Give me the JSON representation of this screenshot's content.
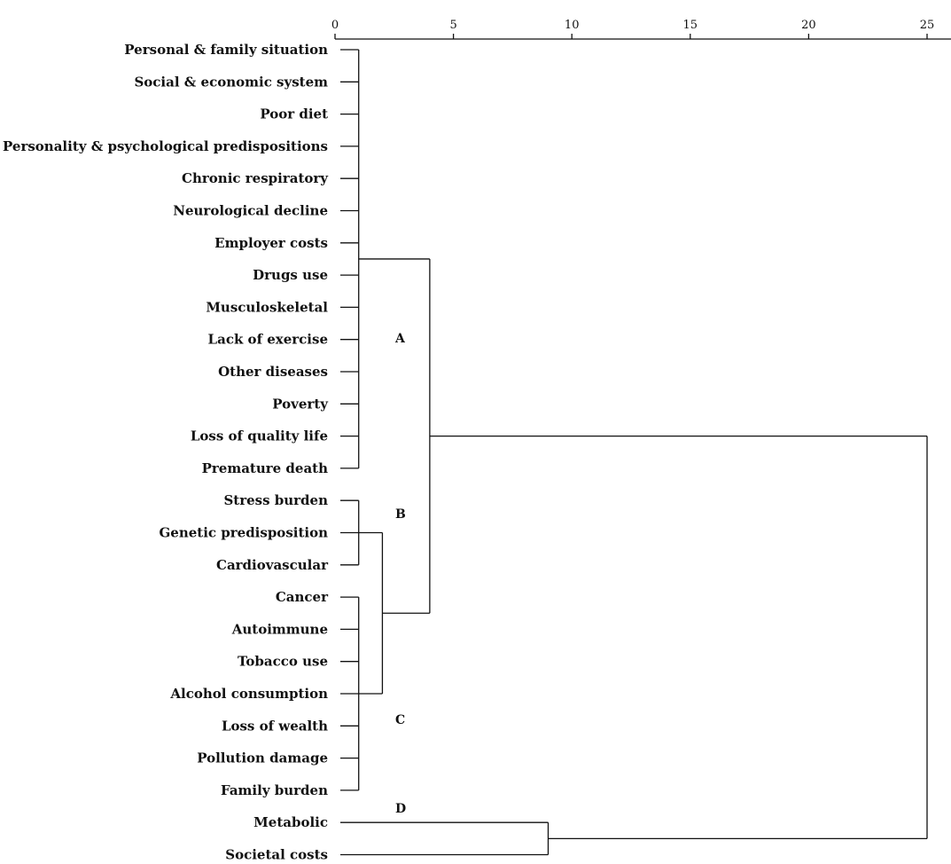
{
  "chart_data": {
    "type": "dendrogram",
    "x_axis": {
      "range": [
        0,
        25
      ],
      "ticks": [
        0,
        5,
        10,
        15,
        20,
        25
      ],
      "position": "top"
    },
    "leaves": [
      "Personal & family situation",
      "Social & economic system",
      "Poor diet",
      "Personality & psychological predispositions",
      "Chronic respiratory",
      "Neurological decline",
      "Employer costs",
      "Drugs use",
      "Musculoskeletal",
      "Lack of exercise",
      "Other diseases",
      "Poverty",
      "Loss of quality life",
      "Premature death",
      "Stress burden",
      "Genetic predisposition",
      "Cardiovascular",
      "Cancer",
      "Autoimmune",
      "Tobacco use",
      "Alcohol consumption",
      "Loss of wealth",
      "Pollution damage",
      "Family burden",
      "Metabolic",
      "Societal costs"
    ],
    "merges": [
      {
        "id": "A",
        "height": 1,
        "members": [
          0,
          1,
          2,
          3,
          4,
          5,
          6,
          7,
          8,
          9,
          10,
          11,
          12,
          13
        ]
      },
      {
        "id": "B",
        "height": 1,
        "members": [
          14,
          15,
          16
        ]
      },
      {
        "id": "C",
        "height": 1,
        "members": [
          17,
          18,
          19,
          20,
          21,
          22,
          23
        ]
      },
      {
        "id": "BC",
        "height": 2,
        "children": [
          "B",
          "C"
        ]
      },
      {
        "id": "ABC",
        "height": 4,
        "children": [
          "A",
          "BC"
        ]
      },
      {
        "id": "D",
        "height": 9,
        "members": [
          24,
          25
        ]
      },
      {
        "id": "ROOT",
        "height": 25,
        "children": [
          "ABC",
          "D"
        ]
      }
    ],
    "cluster_labels": [
      {
        "text": "A",
        "cluster": "A"
      },
      {
        "text": "B",
        "cluster": "B"
      },
      {
        "text": "C",
        "cluster": "C"
      },
      {
        "text": "D",
        "cluster": "D"
      }
    ]
  }
}
